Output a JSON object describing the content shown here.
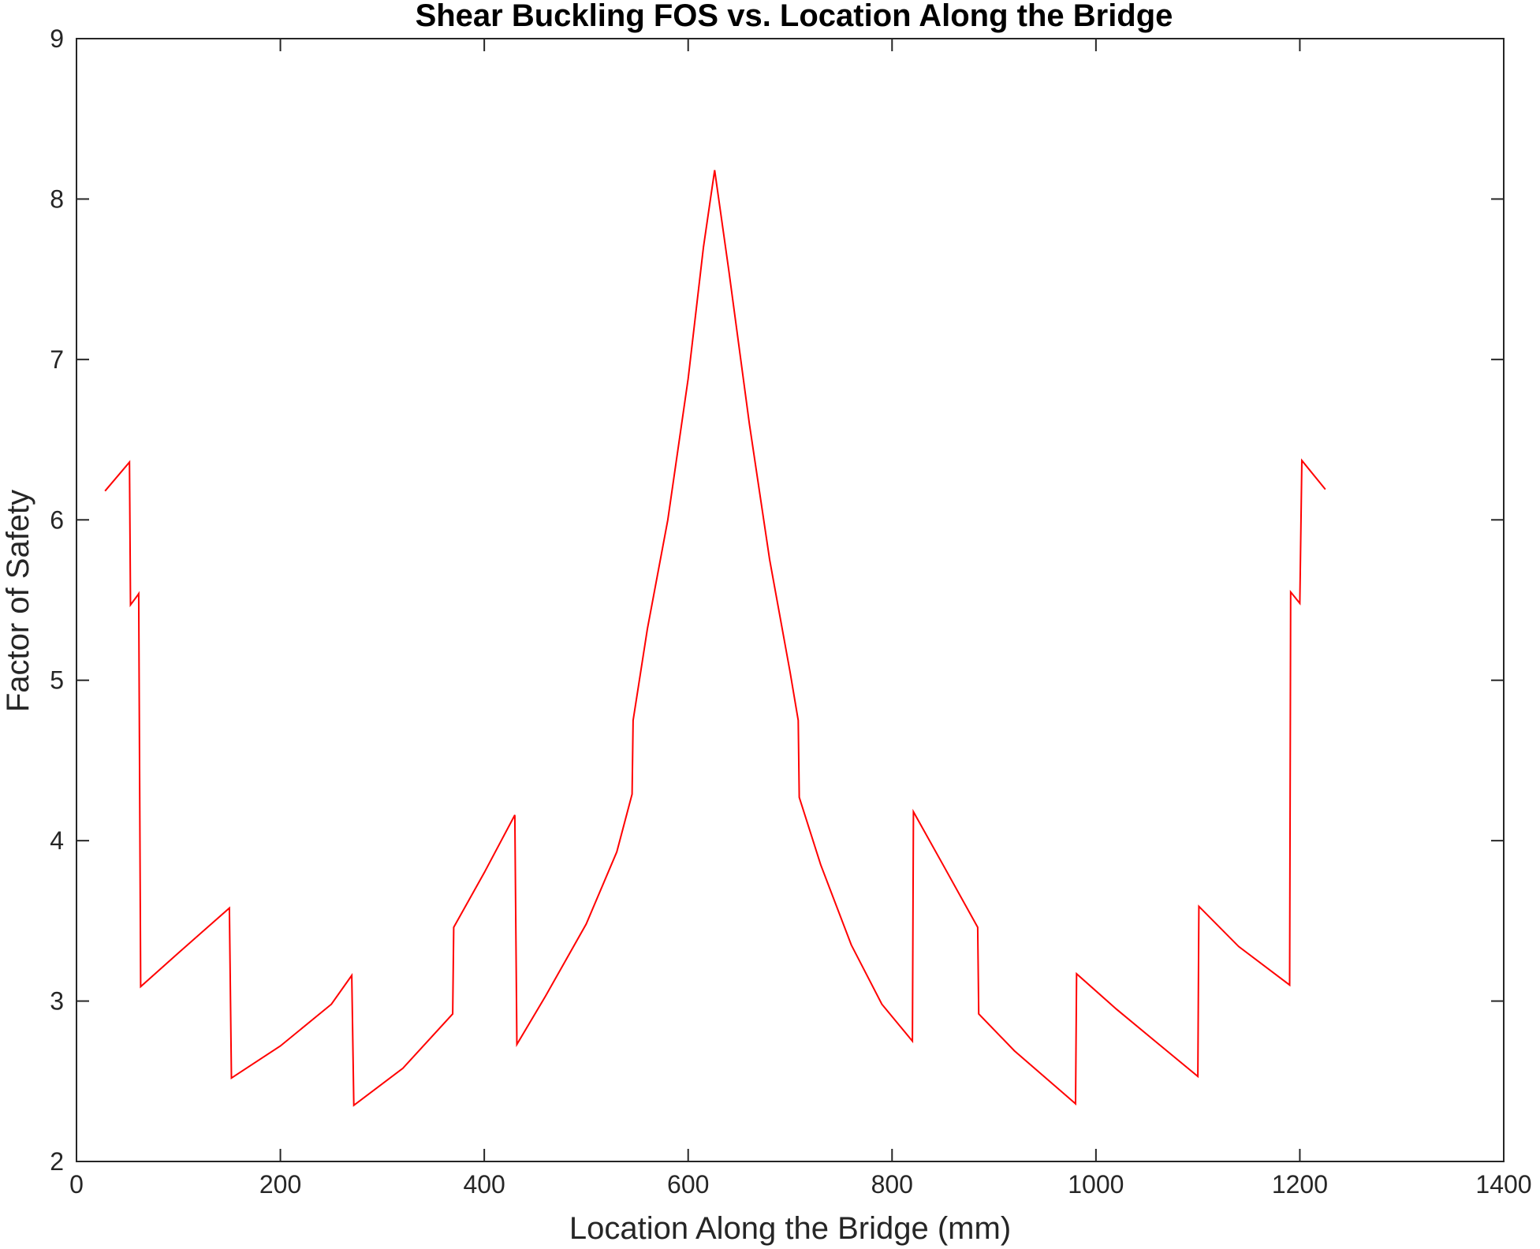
{
  "chart_data": {
    "type": "line",
    "title": "Shear Buckling FOS vs. Location Along the Bridge",
    "xlabel": "Location Along the Bridge (mm)",
    "ylabel": "Factor of Safety",
    "xlim": [
      0,
      1400
    ],
    "ylim": [
      2,
      9
    ],
    "xticks": [
      0,
      200,
      400,
      600,
      800,
      1000,
      1200,
      1400
    ],
    "yticks": [
      2,
      3,
      4,
      5,
      6,
      7,
      8,
      9
    ],
    "grid": false,
    "colors": {
      "line": "#ff0000",
      "axes": "#262626"
    },
    "series": [
      {
        "points": [
          [
            28,
            6.18
          ],
          [
            52,
            6.36
          ],
          [
            53,
            5.47
          ],
          [
            60,
            5.53
          ],
          [
            61,
            5.54
          ],
          [
            63,
            3.09
          ],
          [
            100,
            3.3
          ],
          [
            150,
            3.58
          ],
          [
            152,
            2.52
          ],
          [
            200,
            2.72
          ],
          [
            250,
            2.98
          ],
          [
            270,
            3.16
          ],
          [
            272,
            2.35
          ],
          [
            320,
            2.58
          ],
          [
            369,
            2.92
          ],
          [
            370,
            3.46
          ],
          [
            400,
            3.8
          ],
          [
            430,
            4.16
          ],
          [
            432,
            2.73
          ],
          [
            460,
            3.03
          ],
          [
            500,
            3.48
          ],
          [
            530,
            3.93
          ],
          [
            545,
            4.29
          ],
          [
            546,
            4.75
          ],
          [
            560,
            5.32
          ],
          [
            580,
            6.0
          ],
          [
            600,
            6.88
          ],
          [
            615,
            7.7
          ],
          [
            626,
            8.18
          ],
          [
            640,
            7.55
          ],
          [
            660,
            6.6
          ],
          [
            680,
            5.75
          ],
          [
            700,
            5.05
          ],
          [
            708,
            4.75
          ],
          [
            709,
            4.27
          ],
          [
            730,
            3.85
          ],
          [
            760,
            3.35
          ],
          [
            790,
            2.98
          ],
          [
            820,
            2.75
          ],
          [
            821,
            4.18
          ],
          [
            850,
            3.85
          ],
          [
            884,
            3.46
          ],
          [
            885,
            2.92
          ],
          [
            920,
            2.69
          ],
          [
            960,
            2.47
          ],
          [
            980,
            2.36
          ],
          [
            981,
            3.17
          ],
          [
            1020,
            2.95
          ],
          [
            1060,
            2.74
          ],
          [
            1100,
            2.53
          ],
          [
            1101,
            3.59
          ],
          [
            1140,
            3.34
          ],
          [
            1190,
            3.1
          ],
          [
            1191,
            5.55
          ],
          [
            1200,
            5.48
          ],
          [
            1202,
            6.37
          ],
          [
            1225,
            6.19
          ]
        ]
      }
    ]
  }
}
